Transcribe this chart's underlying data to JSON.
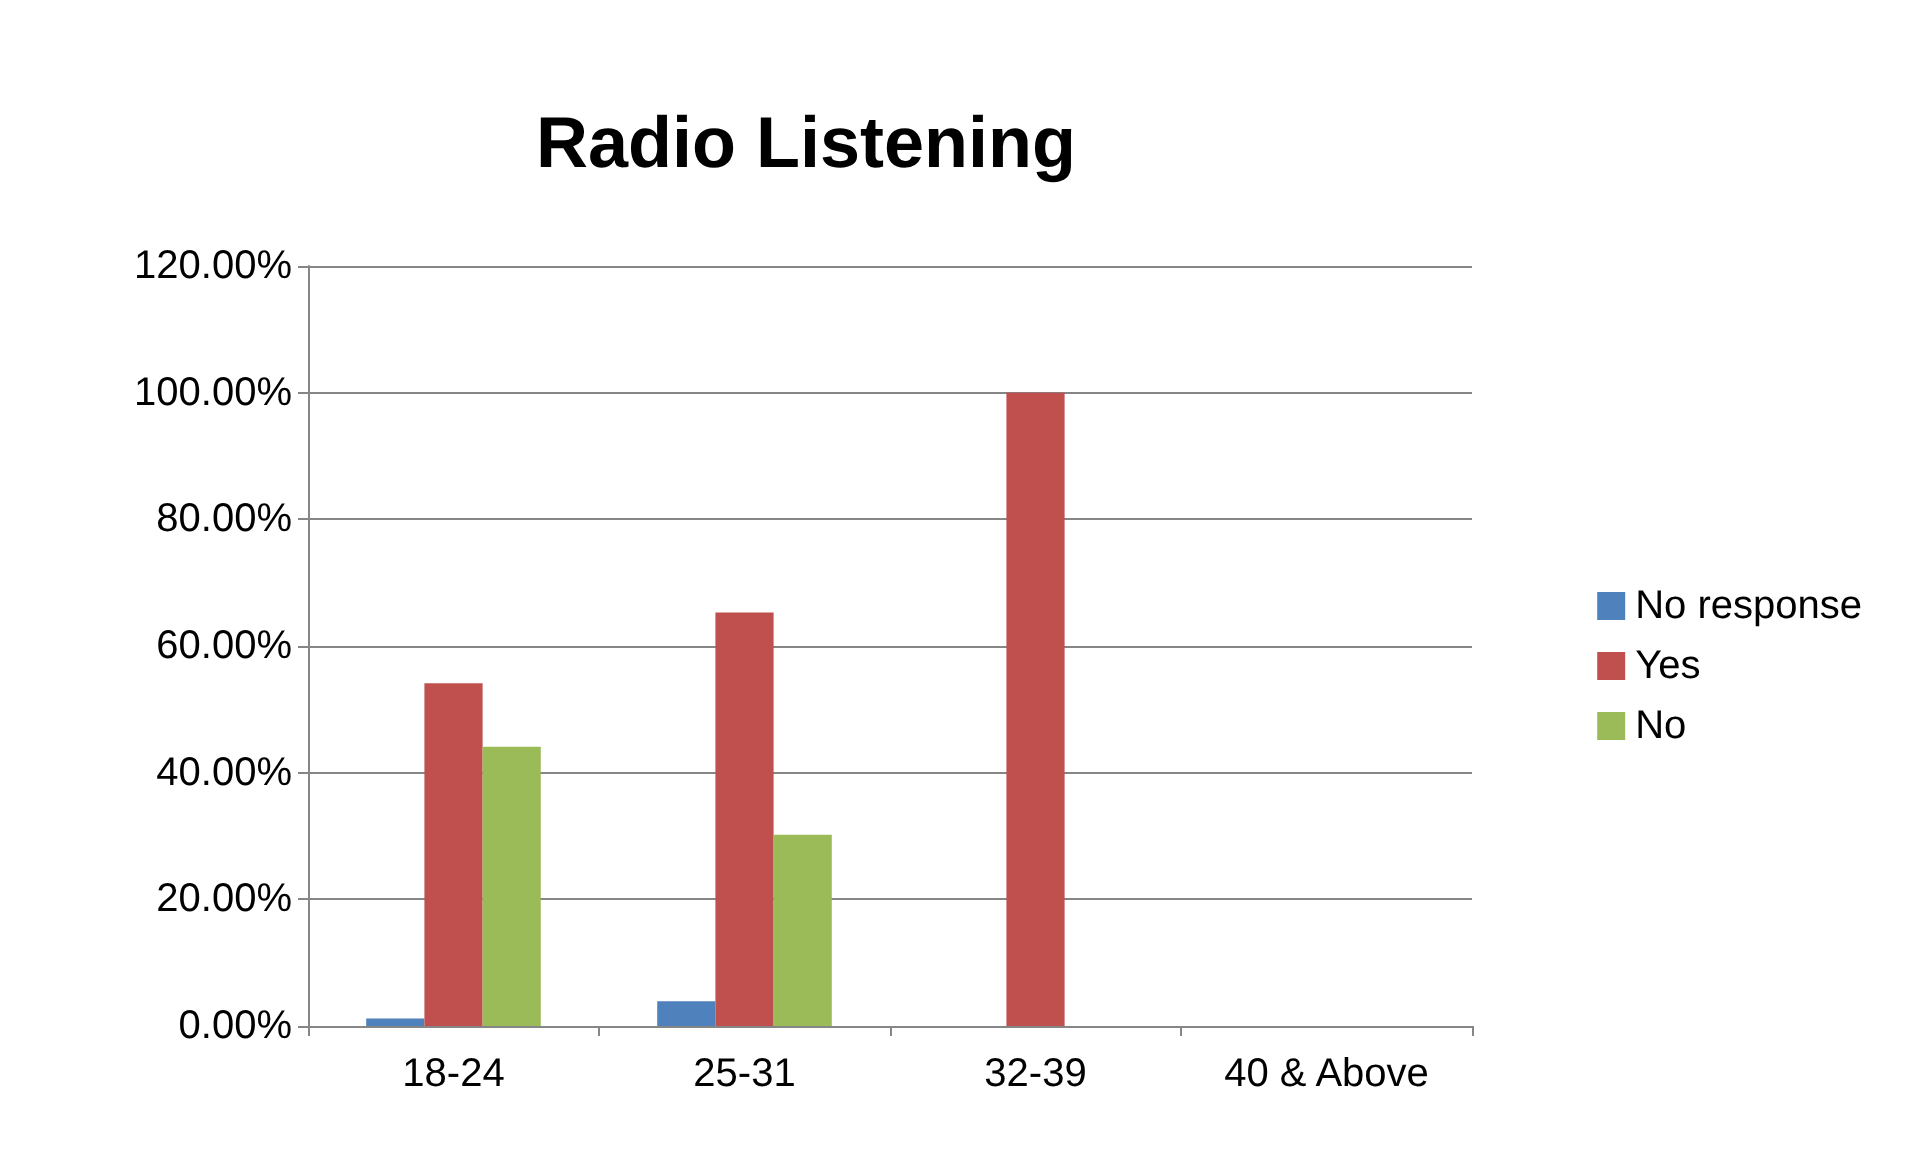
{
  "chart_data": {
    "type": "bar",
    "title": "Radio Listening",
    "categories": [
      "18-24",
      "25-31",
      "32-39",
      "40 & Above"
    ],
    "series": [
      {
        "name": "No response",
        "color": "#4f81bd",
        "values": [
          1.2,
          3.9,
          0,
          0
        ]
      },
      {
        "name": "Yes",
        "color": "#c0504d",
        "values": [
          54.1,
          65.3,
          100,
          0
        ]
      },
      {
        "name": "No",
        "color": "#9bbb59",
        "values": [
          44.1,
          30.2,
          0,
          0
        ]
      }
    ],
    "ylim": [
      0,
      120
    ],
    "yticks": [
      {
        "value": 0,
        "label": "0.00%"
      },
      {
        "value": 20,
        "label": "20.00%"
      },
      {
        "value": 40,
        "label": "40.00%"
      },
      {
        "value": 60,
        "label": "60.00%"
      },
      {
        "value": 80,
        "label": "80.00%"
      },
      {
        "value": 100,
        "label": "100.00%"
      },
      {
        "value": 120,
        "label": "120.00%"
      }
    ],
    "grid": "y",
    "legend": "right"
  }
}
